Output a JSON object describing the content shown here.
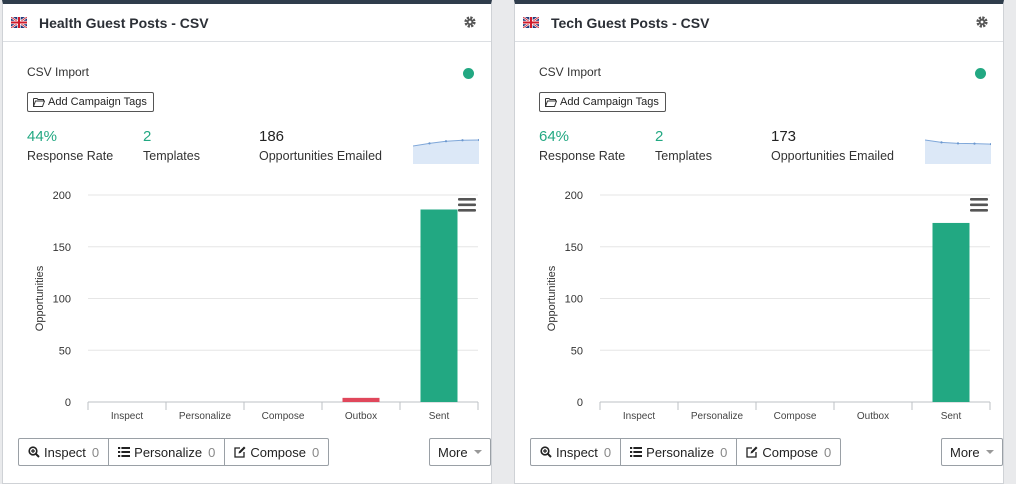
{
  "panels": [
    {
      "title": "Health Guest Posts - CSV",
      "subtitle": "CSV Import",
      "tag_button": "Add Campaign Tags",
      "status_color": "#22a882",
      "stats": [
        {
          "value": "44%",
          "label": "Response Rate"
        },
        {
          "value": "2",
          "label": "Templates"
        },
        {
          "value": "186",
          "label": "Opportunities Emailed"
        }
      ],
      "sparkline": [
        0.5,
        0.72,
        0.9,
        0.98,
        1.0
      ],
      "buttons": [
        {
          "label": "Inspect",
          "count": "0",
          "icon": "search-plus-icon"
        },
        {
          "label": "Personalize",
          "count": "0",
          "icon": "list-icon"
        },
        {
          "label": "Compose",
          "count": "0",
          "icon": "edit-icon"
        }
      ],
      "more_label": "More",
      "chart_data": {
        "type": "bar",
        "categories": [
          "Inspect",
          "Personalize",
          "Compose",
          "Outbox",
          "Sent"
        ],
        "values": [
          0,
          0,
          0,
          4,
          186
        ],
        "colors": [
          "#22a882",
          "#22a882",
          "#22a882",
          "#e0475b",
          "#22a882"
        ],
        "ylabel": "Opportunities",
        "ylim": [
          0,
          200
        ],
        "yticks": [
          0,
          50,
          100,
          150,
          200
        ],
        "grid": true
      }
    },
    {
      "title": "Tech Guest Posts - CSV",
      "subtitle": "CSV Import",
      "tag_button": "Add Campaign Tags",
      "status_color": "#22a882",
      "stats": [
        {
          "value": "64%",
          "label": "Response Rate"
        },
        {
          "value": "2",
          "label": "Templates"
        },
        {
          "value": "173",
          "label": "Opportunities Emailed"
        }
      ],
      "sparkline": [
        1.0,
        0.8,
        0.72,
        0.7,
        0.66
      ],
      "buttons": [
        {
          "label": "Inspect",
          "count": "0",
          "icon": "search-plus-icon"
        },
        {
          "label": "Personalize",
          "count": "0",
          "icon": "list-icon"
        },
        {
          "label": "Compose",
          "count": "0",
          "icon": "edit-icon"
        }
      ],
      "more_label": "More",
      "chart_data": {
        "type": "bar",
        "categories": [
          "Inspect",
          "Personalize",
          "Compose",
          "Outbox",
          "Sent"
        ],
        "values": [
          0,
          0,
          0,
          0,
          173
        ],
        "colors": [
          "#22a882",
          "#22a882",
          "#22a882",
          "#e0475b",
          "#22a882"
        ],
        "ylabel": "Opportunities",
        "ylim": [
          0,
          200
        ],
        "yticks": [
          0,
          50,
          100,
          150,
          200
        ],
        "grid": true
      }
    }
  ]
}
